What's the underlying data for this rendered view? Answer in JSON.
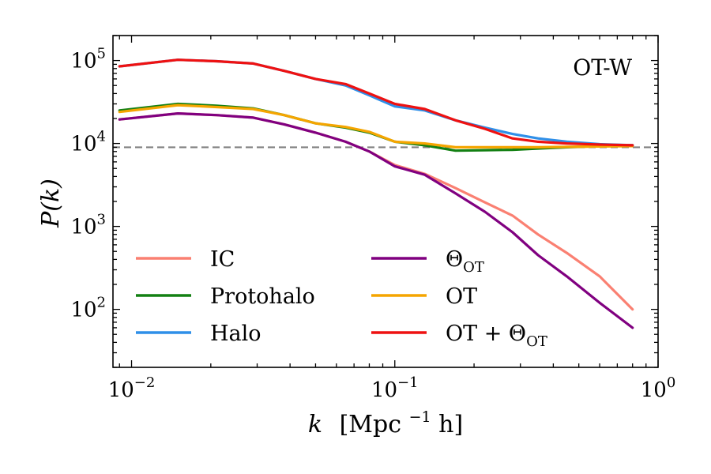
{
  "chart_data": {
    "type": "line",
    "xscale": "log",
    "yscale": "log",
    "xlim": [
      0.0085,
      1.0
    ],
    "ylim": [
      20,
      200000
    ],
    "xlabel_main": "k",
    "xlabel_unit": "[Mpc",
    "xlabel_exp": "−1",
    "xlabel_end": "h]",
    "ylabel_main": "P(k)",
    "annotation": "OT-W",
    "x_ticks": [
      {
        "value": 0.01,
        "base": "10",
        "exp": "−2"
      },
      {
        "value": 0.1,
        "base": "10",
        "exp": "−1"
      },
      {
        "value": 1.0,
        "base": "10",
        "exp": "0"
      }
    ],
    "y_ticks": [
      {
        "value": 100,
        "base": "10",
        "exp": "2"
      },
      {
        "value": 1000,
        "base": "10",
        "exp": "3"
      },
      {
        "value": 10000,
        "base": "10",
        "exp": "4"
      },
      {
        "value": 100000,
        "base": "10",
        "exp": "5"
      }
    ],
    "reference_line": {
      "y": 9000,
      "style": "dashed",
      "color": "#808080"
    },
    "x": [
      0.009,
      0.015,
      0.021,
      0.029,
      0.038,
      0.05,
      0.065,
      0.08,
      0.1,
      0.13,
      0.17,
      0.22,
      0.28,
      0.35,
      0.45,
      0.6,
      0.8
    ],
    "series": [
      {
        "name": "IC",
        "name_sub": "",
        "color": "#fa8072",
        "values": [
          19500,
          23000,
          22000,
          20500,
          17000,
          13500,
          10500,
          8000,
          5500,
          4300,
          2900,
          1950,
          1350,
          800,
          480,
          250,
          100
        ]
      },
      {
        "name": "Protohalo",
        "name_sub": "",
        "color": "#138013",
        "values": [
          25000,
          30000,
          28500,
          26500,
          22000,
          17500,
          15500,
          13500,
          10500,
          9500,
          8200,
          8300,
          8400,
          8700,
          9000,
          9300,
          9500
        ]
      },
      {
        "name": "Halo",
        "name_sub": "",
        "color": "#2f8fe8",
        "values": [
          85000,
          102000,
          98000,
          92000,
          75000,
          60000,
          50000,
          38000,
          28000,
          25000,
          19000,
          15500,
          13000,
          11500,
          10500,
          9800,
          9500
        ]
      },
      {
        "name": "Θ",
        "name_sub": "OT",
        "color": "#800080",
        "values": [
          19500,
          23000,
          22000,
          20500,
          17000,
          13500,
          10500,
          8000,
          5300,
          4200,
          2500,
          1500,
          850,
          450,
          250,
          120,
          60
        ]
      },
      {
        "name": "OT",
        "name_sub": "",
        "color": "#f5a500",
        "values": [
          24000,
          29000,
          27500,
          26000,
          22000,
          17500,
          15800,
          13800,
          10500,
          10000,
          9000,
          9000,
          9000,
          9000,
          9100,
          9200,
          9300
        ]
      },
      {
        "name": "OT + Θ",
        "name_sub": "OT",
        "color": "#ee1111",
        "values": [
          85000,
          102000,
          98000,
          92000,
          75000,
          60000,
          52000,
          40000,
          30000,
          26000,
          19000,
          15000,
          11500,
          10500,
          10000,
          9700,
          9500
        ]
      }
    ]
  }
}
